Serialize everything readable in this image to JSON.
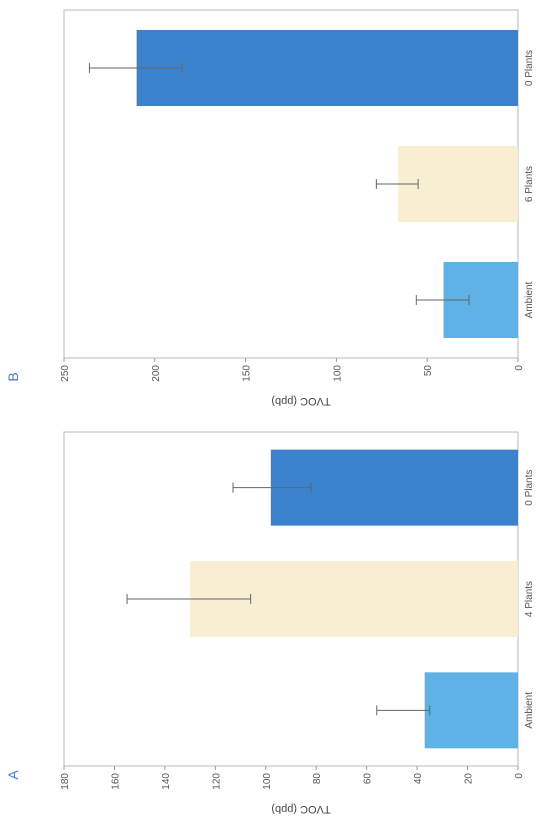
{
  "chart_data": [
    {
      "type": "bar",
      "panel_label": "A",
      "title": "",
      "xlabel": "",
      "ylabel": "TVOC (ppb)",
      "ylim": [
        0,
        180
      ],
      "yticks": [
        0,
        20,
        40,
        60,
        80,
        100,
        120,
        140,
        160,
        180
      ],
      "categories": [
        "0 Plants",
        "4 Plants",
        "Ambient"
      ],
      "values": [
        98,
        130,
        37
      ],
      "error_low": [
        82,
        106,
        35
      ],
      "error_high": [
        113,
        155,
        56
      ],
      "colors": [
        "#3b82cc",
        "#f8efd2",
        "#5fb2e6"
      ],
      "grid": false,
      "legend": "none"
    },
    {
      "type": "bar",
      "panel_label": "B",
      "title": "",
      "xlabel": "",
      "ylabel": "TVOC (ppb)",
      "ylim": [
        0,
        250
      ],
      "yticks": [
        0,
        50,
        100,
        150,
        200,
        250
      ],
      "categories": [
        "0 Plants",
        "6 Plants",
        "Ambient"
      ],
      "values": [
        210,
        66,
        41
      ],
      "error_low": [
        185,
        55,
        27
      ],
      "error_high": [
        236,
        78,
        56
      ],
      "colors": [
        "#3b82cc",
        "#f8efd2",
        "#5fb2e6"
      ],
      "grid": false,
      "legend": "none"
    }
  ]
}
